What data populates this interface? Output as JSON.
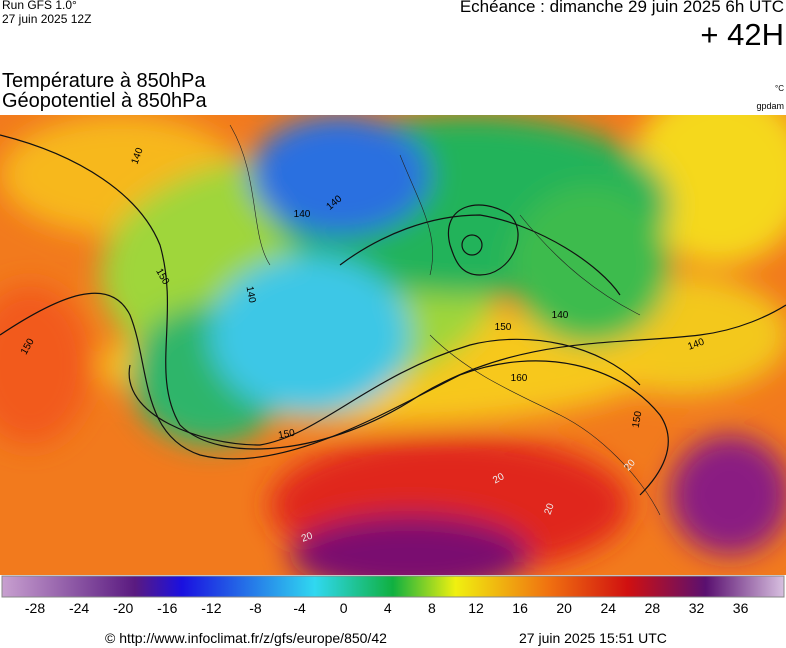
{
  "header": {
    "run": "Run GFS 1.0°",
    "run_date": "27 juin 2025 12Z",
    "echeance": "Echéance : dimanche 29 juin 2025 6h UTC",
    "lead": "+ 42H"
  },
  "titles": {
    "line1": "Température à 850hPa",
    "line2": "Géopotentiel à 850hPa",
    "unit1": "°C",
    "unit2": "gpdam"
  },
  "map": {
    "contour_labels": [
      "140",
      "140",
      "140",
      "140",
      "150",
      "150",
      "150",
      "150",
      "160",
      "140",
      "140",
      "150",
      "20",
      "20",
      "20",
      "20"
    ]
  },
  "colorbar": {
    "ticks": [
      -28,
      -24,
      -20,
      -16,
      -12,
      -8,
      -4,
      0,
      4,
      8,
      12,
      16,
      20,
      24,
      28,
      32,
      36
    ]
  },
  "footer": {
    "url": "© http://www.infoclimat.fr/z/gfs/europe/850/42",
    "generated": "27 juin 2025 15:51 UTC"
  }
}
